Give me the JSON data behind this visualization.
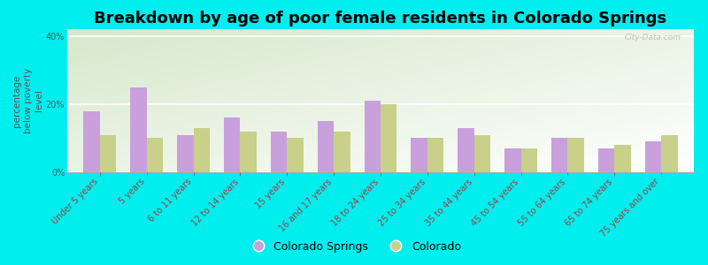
{
  "title": "Breakdown by age of poor female residents in Colorado Springs",
  "ylabel": "percentage\nbelow poverty\nlevel",
  "categories": [
    "Under 5 years",
    "5 years",
    "6 to 11 years",
    "12 to 14 years",
    "15 years",
    "16 and 17 years",
    "18 to 24 years",
    "25 to 34 years",
    "35 to 44 years",
    "45 to 54 years",
    "55 to 64 years",
    "65 to 74 years",
    "75 years and over"
  ],
  "colorado_springs": [
    18,
    25,
    11,
    16,
    12,
    15,
    21,
    10,
    13,
    7,
    10,
    7,
    9
  ],
  "colorado": [
    11,
    10,
    13,
    12,
    10,
    12,
    20,
    10,
    11,
    7,
    10,
    8,
    11
  ],
  "cs_color": "#c9a0dc",
  "co_color": "#c8d08a",
  "outer_bg": "#00eeee",
  "bg_color_topleft": "#d8e8c8",
  "bg_color_right": "#f0f5f0",
  "bg_color_bottom": "#f8faf8",
  "ylim": [
    0,
    42
  ],
  "yticks": [
    0,
    20,
    40
  ],
  "ytick_labels": [
    "0%",
    "20%",
    "40%"
  ],
  "bar_width": 0.35,
  "title_fontsize": 13,
  "axis_fontsize": 7.5,
  "tick_fontsize": 7,
  "legend_fontsize": 9,
  "watermark": "City-Data.com"
}
